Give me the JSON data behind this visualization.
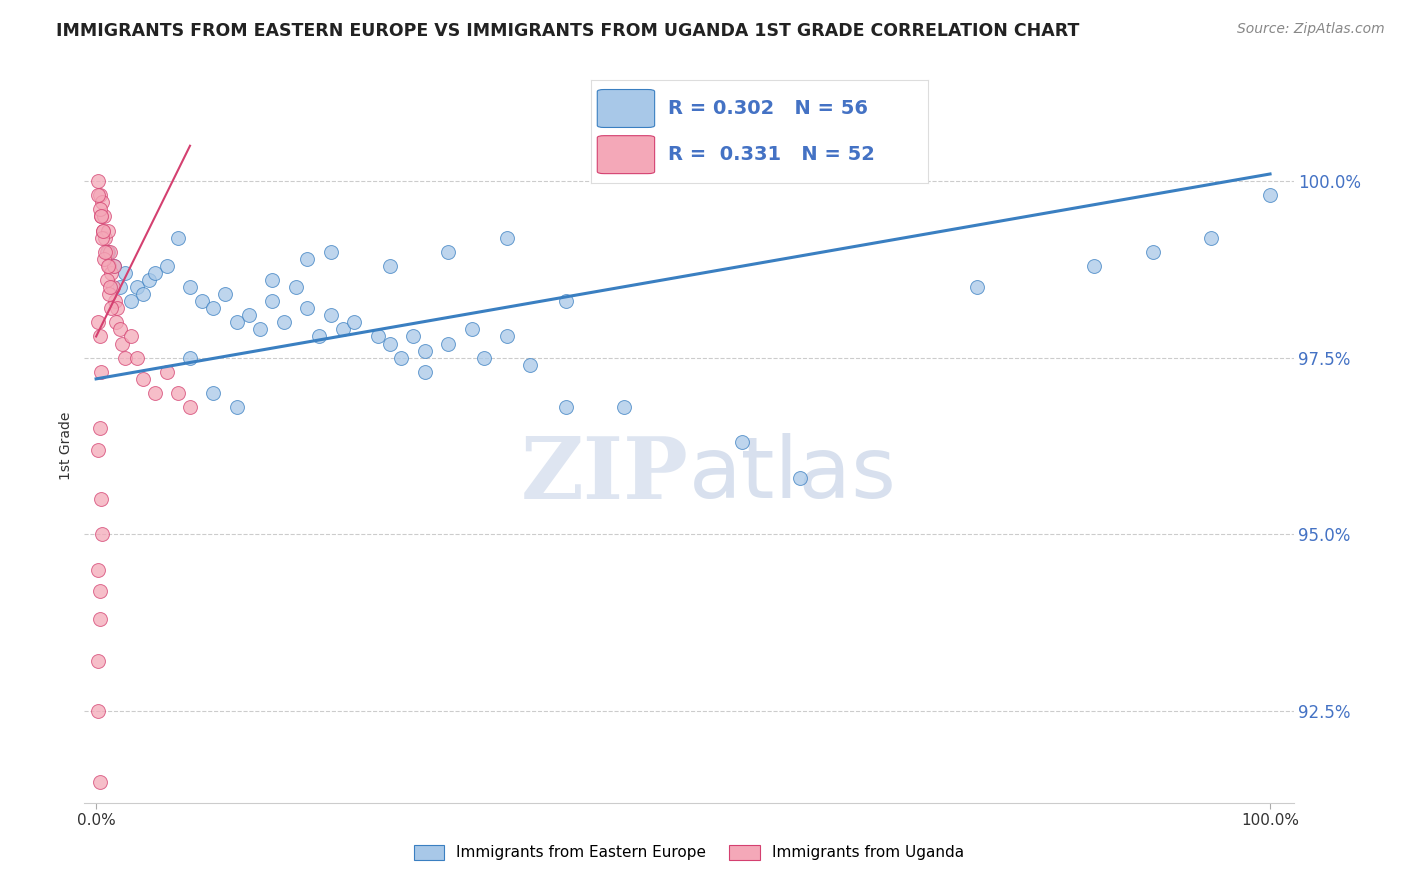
{
  "title": "IMMIGRANTS FROM EASTERN EUROPE VS IMMIGRANTS FROM UGANDA 1ST GRADE CORRELATION CHART",
  "source_text": "Source: ZipAtlas.com",
  "ylabel": "1st Grade",
  "legend_labels": [
    "Immigrants from Eastern Europe",
    "Immigrants from Uganda"
  ],
  "R_blue": 0.302,
  "N_blue": 56,
  "R_pink": 0.331,
  "N_pink": 52,
  "color_blue": "#A8C8E8",
  "color_pink": "#F4A8B8",
  "line_blue": "#3A7FC1",
  "line_pink": "#D44070",
  "xlim": [
    -1.0,
    102.0
  ],
  "ylim": [
    91.2,
    101.3
  ],
  "yticks": [
    92.5,
    95.0,
    97.5,
    100.0
  ],
  "ytick_labels": [
    "92.5%",
    "95.0%",
    "97.5%",
    "100.0%"
  ],
  "blue_line_x": [
    0,
    100
  ],
  "blue_line_y": [
    97.2,
    100.1
  ],
  "pink_line_x": [
    0,
    8
  ],
  "pink_line_y": [
    97.8,
    100.5
  ],
  "blue_scatter_x": [
    1,
    1.5,
    2,
    2.5,
    3,
    3.5,
    4,
    4.5,
    5,
    6,
    7,
    8,
    9,
    10,
    11,
    12,
    13,
    14,
    15,
    16,
    17,
    18,
    19,
    20,
    21,
    22,
    24,
    25,
    26,
    27,
    28,
    30,
    32,
    33,
    35,
    37,
    40,
    15,
    18,
    20,
    25,
    30,
    35,
    40,
    45,
    55,
    60,
    75,
    85,
    90,
    95,
    100,
    8,
    10,
    12,
    28
  ],
  "blue_scatter_y": [
    99.0,
    98.8,
    98.5,
    98.7,
    98.3,
    98.5,
    98.4,
    98.6,
    98.7,
    98.8,
    99.2,
    98.5,
    98.3,
    98.2,
    98.4,
    98.0,
    98.1,
    97.9,
    98.3,
    98.0,
    98.5,
    98.2,
    97.8,
    98.1,
    97.9,
    98.0,
    97.8,
    97.7,
    97.5,
    97.8,
    97.6,
    97.7,
    97.9,
    97.5,
    97.8,
    97.4,
    96.8,
    98.6,
    98.9,
    99.0,
    98.8,
    99.0,
    99.2,
    98.3,
    96.8,
    96.3,
    95.8,
    98.5,
    98.8,
    99.0,
    99.2,
    99.8,
    97.5,
    97.0,
    96.8,
    97.3
  ],
  "pink_scatter_x": [
    0.2,
    0.3,
    0.4,
    0.5,
    0.6,
    0.7,
    0.8,
    0.9,
    1.0,
    1.1,
    1.2,
    1.3,
    1.4,
    1.5,
    1.6,
    1.7,
    1.8,
    2.0,
    2.2,
    2.5,
    3.0,
    3.5,
    4.0,
    5.0,
    6.0,
    7.0,
    8.0,
    0.3,
    0.5,
    0.7,
    0.9,
    1.1,
    1.3,
    0.2,
    0.4,
    0.6,
    0.8,
    1.0,
    1.2,
    0.2,
    0.3,
    0.4,
    0.5,
    0.2,
    0.3,
    0.2,
    0.3,
    0.4,
    0.3,
    0.2,
    0.2,
    0.3
  ],
  "pink_scatter_y": [
    100.0,
    99.8,
    99.5,
    99.7,
    99.3,
    99.5,
    99.2,
    99.0,
    99.3,
    98.8,
    99.0,
    98.7,
    98.5,
    98.8,
    98.3,
    98.0,
    98.2,
    97.9,
    97.7,
    97.5,
    97.8,
    97.5,
    97.2,
    97.0,
    97.3,
    97.0,
    96.8,
    99.6,
    99.2,
    98.9,
    98.6,
    98.4,
    98.2,
    99.8,
    99.5,
    99.3,
    99.0,
    98.8,
    98.5,
    98.0,
    97.8,
    97.3,
    95.0,
    94.5,
    94.2,
    92.5,
    91.5,
    95.5,
    96.5,
    96.2,
    93.2,
    93.8
  ],
  "watermark_zip": "ZIP",
  "watermark_atlas": "atlas",
  "background_color": "#FFFFFF",
  "grid_color": "#CCCCCC"
}
